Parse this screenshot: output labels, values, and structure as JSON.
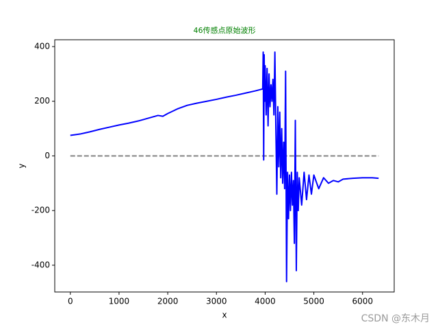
{
  "chart_data": {
    "type": "line",
    "title": "46传感点原始波形",
    "title_color": "#008000",
    "xlabel": "x",
    "ylabel": "y",
    "watermark": "CSDN @东木月",
    "x": [
      0,
      200,
      400,
      600,
      800,
      1000,
      1200,
      1400,
      1600,
      1800,
      1900,
      2000,
      2200,
      2400,
      2600,
      2800,
      3000,
      3200,
      3400,
      3600,
      3800,
      3950,
      3960,
      3970,
      3980,
      3990,
      4000,
      4020,
      4040,
      4060,
      4080,
      4100,
      4120,
      4140,
      4160,
      4180,
      4200,
      4220,
      4240,
      4260,
      4280,
      4300,
      4320,
      4340,
      4360,
      4380,
      4400,
      4420,
      4440,
      4460,
      4480,
      4500,
      4520,
      4540,
      4560,
      4580,
      4600,
      4620,
      4640,
      4660,
      4680,
      4700,
      4750,
      4800,
      4850,
      4900,
      4950,
      5000,
      5100,
      5200,
      5300,
      5400,
      5500,
      5600,
      5800,
      6000,
      6200,
      6330
    ],
    "series": [
      {
        "color": "#0000ff",
        "values": [
          75,
          80,
          88,
          97,
          105,
          113,
          120,
          128,
          138,
          148,
          145,
          155,
          172,
          185,
          193,
          200,
          207,
          215,
          222,
          230,
          238,
          245,
          380,
          -15,
          370,
          200,
          330,
          150,
          320,
          110,
          300,
          180,
          260,
          200,
          280,
          150,
          380,
          100,
          -140,
          180,
          -40,
          160,
          -80,
          100,
          -100,
          50,
          -120,
          310,
          -460,
          -60,
          -230,
          -70,
          -200,
          -60,
          -180,
          -90,
          -320,
          130,
          -420,
          -60,
          -200,
          -80,
          -180,
          -60,
          -160,
          -70,
          -140,
          -70,
          -120,
          -80,
          -100,
          -90,
          -95,
          -85,
          -82,
          -80,
          -80,
          -82
        ]
      }
    ],
    "hline": {
      "y": 0,
      "xmin": 0,
      "xmax": 6330,
      "color": "#808080"
    },
    "xlim": [
      -320,
      6650
    ],
    "ylim": [
      -498,
      425
    ],
    "xticks": [
      0,
      1000,
      2000,
      3000,
      4000,
      5000,
      6000
    ],
    "yticks": [
      -400,
      -200,
      0,
      200,
      400
    ]
  }
}
